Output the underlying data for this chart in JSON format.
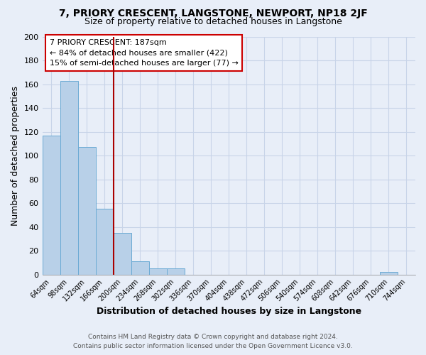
{
  "title": "7, PRIORY CRESCENT, LANGSTONE, NEWPORT, NP18 2JF",
  "subtitle": "Size of property relative to detached houses in Langstone",
  "xlabel": "Distribution of detached houses by size in Langstone",
  "ylabel": "Number of detached properties",
  "bin_labels": [
    "64sqm",
    "98sqm",
    "132sqm",
    "166sqm",
    "200sqm",
    "234sqm",
    "268sqm",
    "302sqm",
    "336sqm",
    "370sqm",
    "404sqm",
    "438sqm",
    "472sqm",
    "506sqm",
    "540sqm",
    "574sqm",
    "608sqm",
    "642sqm",
    "676sqm",
    "710sqm",
    "744sqm"
  ],
  "bar_heights": [
    117,
    163,
    107,
    55,
    35,
    11,
    5,
    5,
    0,
    0,
    0,
    0,
    0,
    0,
    0,
    0,
    0,
    0,
    0,
    2,
    0
  ],
  "bar_color": "#b8d0e8",
  "bar_edge_color": "#6aaad4",
  "vline_x_index": 3.5,
  "vline_color": "#aa0000",
  "annotation_box_title": "7 PRIORY CRESCENT: 187sqm",
  "annotation_line1": "← 84% of detached houses are smaller (422)",
  "annotation_line2": "15% of semi-detached houses are larger (77) →",
  "annotation_box_edge_color": "#cc0000",
  "annotation_box_face_color": "#ffffff",
  "ylim": [
    0,
    200
  ],
  "yticks": [
    0,
    20,
    40,
    60,
    80,
    100,
    120,
    140,
    160,
    180,
    200
  ],
  "footer_line1": "Contains HM Land Registry data © Crown copyright and database right 2024.",
  "footer_line2": "Contains public sector information licensed under the Open Government Licence v3.0.",
  "background_color": "#e8eef8",
  "grid_color": "#c8d4e8",
  "title_fontsize": 10,
  "subtitle_fontsize": 9,
  "axis_label_fontsize": 9,
  "xlabel_fontsize": 9,
  "tick_fontsize": 7,
  "ytick_fontsize": 8
}
